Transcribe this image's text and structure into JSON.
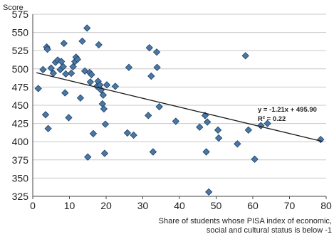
{
  "chart_data": {
    "type": "scatter",
    "ylabel": "Score",
    "xlabel_lines": [
      "Share of students whose PISA index of economic,",
      "social and cultural status is below -1"
    ],
    "xlim": [
      0,
      80
    ],
    "ylim": [
      325,
      575
    ],
    "xticks": [
      0,
      10,
      20,
      30,
      40,
      50,
      60,
      70,
      80
    ],
    "yticks": [
      325,
      350,
      375,
      400,
      425,
      450,
      475,
      500,
      525,
      550,
      575
    ],
    "grid": {
      "horizontal": true,
      "vertical": false
    },
    "marker": {
      "shape": "diamond",
      "fill": "#4a78a6",
      "stroke": "#1f3f63"
    },
    "trendline": {
      "slope": -1.21,
      "intercept": 495.9,
      "x_range": [
        1,
        79
      ],
      "equation": "y = -1.21x + 495.90",
      "r_squared": "R² = 0.22",
      "color": "#1a1a1a"
    },
    "points": [
      {
        "x": 1.5,
        "y": 473
      },
      {
        "x": 2.8,
        "y": 499
      },
      {
        "x": 3.5,
        "y": 437
      },
      {
        "x": 3.8,
        "y": 530
      },
      {
        "x": 4.0,
        "y": 527
      },
      {
        "x": 4.2,
        "y": 418
      },
      {
        "x": 5.0,
        "y": 501
      },
      {
        "x": 5.6,
        "y": 494
      },
      {
        "x": 6.2,
        "y": 509
      },
      {
        "x": 6.8,
        "y": 512
      },
      {
        "x": 7.5,
        "y": 499
      },
      {
        "x": 7.8,
        "y": 510
      },
      {
        "x": 8.3,
        "y": 503
      },
      {
        "x": 8.5,
        "y": 535
      },
      {
        "x": 8.8,
        "y": 467
      },
      {
        "x": 9.0,
        "y": 493
      },
      {
        "x": 9.8,
        "y": 433
      },
      {
        "x": 10.5,
        "y": 494
      },
      {
        "x": 11.0,
        "y": 503
      },
      {
        "x": 11.5,
        "y": 510
      },
      {
        "x": 11.8,
        "y": 516
      },
      {
        "x": 12.2,
        "y": 513
      },
      {
        "x": 13.0,
        "y": 460
      },
      {
        "x": 13.5,
        "y": 538
      },
      {
        "x": 14.2,
        "y": 497
      },
      {
        "x": 14.8,
        "y": 556
      },
      {
        "x": 15.0,
        "y": 379
      },
      {
        "x": 15.5,
        "y": 495
      },
      {
        "x": 15.7,
        "y": 482
      },
      {
        "x": 16.0,
        "y": 492
      },
      {
        "x": 16.5,
        "y": 411
      },
      {
        "x": 17.5,
        "y": 476
      },
      {
        "x": 17.8,
        "y": 483
      },
      {
        "x": 18.0,
        "y": 533
      },
      {
        "x": 18.3,
        "y": 478
      },
      {
        "x": 18.6,
        "y": 471
      },
      {
        "x": 19.0,
        "y": 452
      },
      {
        "x": 19.2,
        "y": 464
      },
      {
        "x": 19.4,
        "y": 445
      },
      {
        "x": 19.6,
        "y": 384
      },
      {
        "x": 19.8,
        "y": 424
      },
      {
        "x": 20.2,
        "y": 478
      },
      {
        "x": 22.5,
        "y": 476
      },
      {
        "x": 25.8,
        "y": 412
      },
      {
        "x": 26.2,
        "y": 502
      },
      {
        "x": 27.5,
        "y": 409
      },
      {
        "x": 31.5,
        "y": 436
      },
      {
        "x": 31.8,
        "y": 529
      },
      {
        "x": 32.3,
        "y": 490
      },
      {
        "x": 32.8,
        "y": 386
      },
      {
        "x": 33.8,
        "y": 523
      },
      {
        "x": 33.9,
        "y": 502
      },
      {
        "x": 34.5,
        "y": 448
      },
      {
        "x": 39.0,
        "y": 428
      },
      {
        "x": 45.5,
        "y": 420
      },
      {
        "x": 47.0,
        "y": 436
      },
      {
        "x": 47.3,
        "y": 386
      },
      {
        "x": 47.6,
        "y": 427
      },
      {
        "x": 48.0,
        "y": 331
      },
      {
        "x": 50.5,
        "y": 416
      },
      {
        "x": 50.7,
        "y": 405
      },
      {
        "x": 55.8,
        "y": 397
      },
      {
        "x": 58.0,
        "y": 518
      },
      {
        "x": 58.8,
        "y": 416
      },
      {
        "x": 60.5,
        "y": 376
      },
      {
        "x": 62.2,
        "y": 422
      },
      {
        "x": 64.0,
        "y": 425
      },
      {
        "x": 78.5,
        "y": 403
      }
    ]
  }
}
